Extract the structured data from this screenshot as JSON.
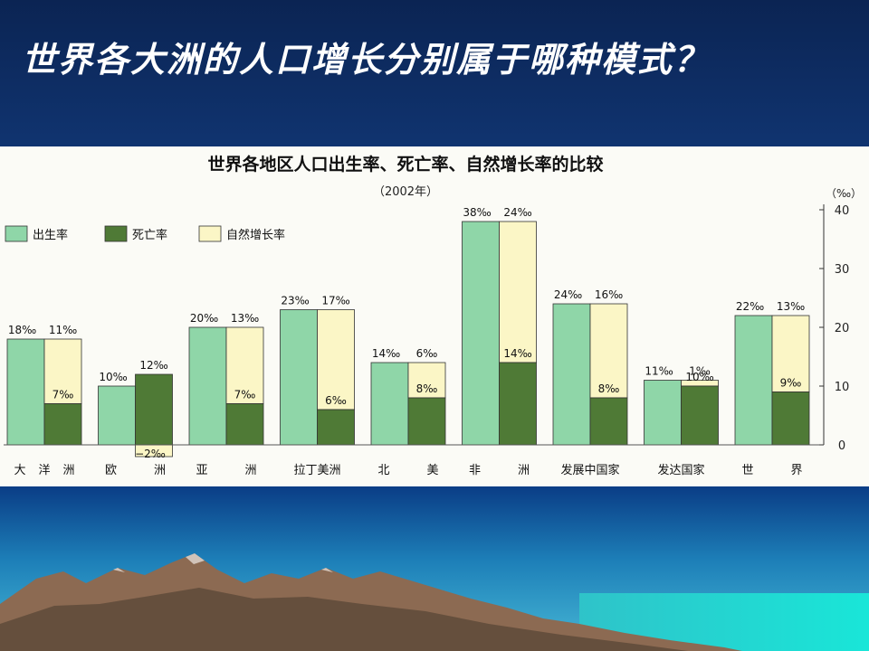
{
  "slide": {
    "title": "世界各大洲的人口增长分别属于哪种模式？"
  },
  "chart_data": {
    "type": "bar",
    "title": "世界各地区人口出生率、死亡率、自然增长率的比较",
    "subtitle": "（2002年）",
    "y_unit": "（‰）",
    "ylim": [
      0,
      40
    ],
    "y_ticks": [
      0,
      10,
      20,
      30,
      40
    ],
    "legend_position": "top-left",
    "categories": [
      {
        "label": [
          "大",
          "洋",
          "洲"
        ]
      },
      {
        "label": [
          "欧",
          "洲"
        ]
      },
      {
        "label": [
          "亚",
          "洲"
        ]
      },
      {
        "label": [
          "拉丁美洲"
        ]
      },
      {
        "label": [
          "北",
          "美"
        ]
      },
      {
        "label": [
          "非",
          "洲"
        ]
      },
      {
        "label": [
          "发展中国家"
        ]
      },
      {
        "label": [
          "发达国家"
        ]
      },
      {
        "label": [
          "世",
          "界"
        ]
      }
    ],
    "series": [
      {
        "name": "出生率",
        "color": "#8fd6a8",
        "values": [
          18,
          10,
          20,
          23,
          14,
          38,
          24,
          11,
          22
        ],
        "labels": [
          "18‰",
          "10‰",
          "20‰",
          "23‰",
          "14‰",
          "38‰",
          "24‰",
          "11‰",
          "22‰"
        ]
      },
      {
        "name": "死亡率",
        "color": "#4f7a36",
        "values": [
          7,
          12,
          7,
          6,
          8,
          14,
          8,
          10,
          9
        ],
        "labels": [
          "7‰",
          "12‰",
          "7‰",
          "6‰",
          "8‰",
          "14‰",
          "8‰",
          "10‰",
          "9‰"
        ]
      },
      {
        "name": "自然增长率",
        "color": "#fbf6c6",
        "values": [
          11,
          -2,
          13,
          17,
          6,
          24,
          16,
          1,
          13
        ],
        "labels": [
          "11‰",
          "−2‰",
          "13‰",
          "17‰",
          "6‰",
          "24‰",
          "16‰",
          "1‰",
          "13‰"
        ]
      }
    ]
  }
}
